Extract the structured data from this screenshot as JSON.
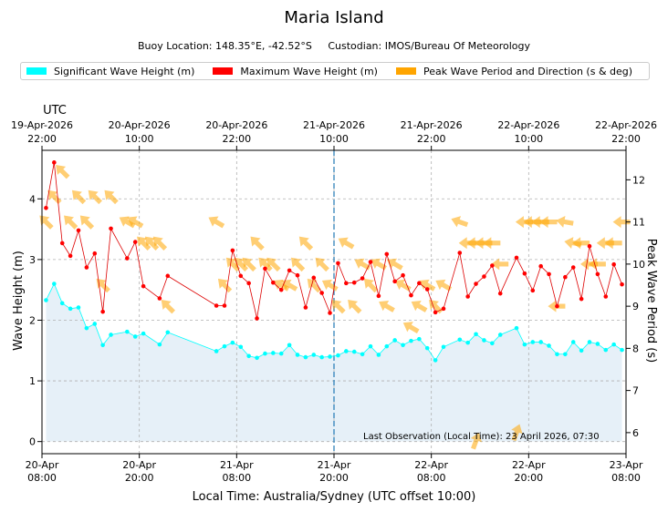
{
  "chart_data": {
    "type": "line",
    "title": "Maria Island",
    "subtitle": "Buoy Location: 148.35°E, -42.52°S     Custodian: IMOS/Bureau Of Meteorology",
    "xlabel": "Local Time: Australia/Sydney (UTC offset 10:00)",
    "ylabel_left": "Wave Height (m)",
    "ylabel_right": "Peak Wave Period (s)",
    "top_axis_label": "UTC",
    "ylim_left": [
      -0.2,
      4.8
    ],
    "ylim_right": [
      5.5,
      12.7
    ],
    "xlim_hours": [
      0,
      72
    ],
    "x_unit": "hours since 20-Apr 08:00 local",
    "yticks_left": [
      0,
      1,
      2,
      3,
      4
    ],
    "yticks_right": [
      6,
      7,
      8,
      9,
      10,
      11,
      12
    ],
    "xticks_bottom": [
      {
        "x": 0,
        "line1": "20-Apr",
        "line2": "08:00"
      },
      {
        "x": 12,
        "line1": "20-Apr",
        "line2": "20:00"
      },
      {
        "x": 24,
        "line1": "21-Apr",
        "line2": "08:00"
      },
      {
        "x": 36,
        "line1": "21-Apr",
        "line2": "20:00"
      },
      {
        "x": 48,
        "line1": "22-Apr",
        "line2": "08:00"
      },
      {
        "x": 60,
        "line1": "22-Apr",
        "line2": "20:00"
      },
      {
        "x": 72,
        "line1": "23-Apr",
        "line2": "08:00"
      }
    ],
    "xticks_top": [
      {
        "x": 0,
        "line1": "19-Apr-2026",
        "line2": "22:00"
      },
      {
        "x": 12,
        "line1": "20-Apr-2026",
        "line2": "10:00"
      },
      {
        "x": 24,
        "line1": "20-Apr-2026",
        "line2": "22:00"
      },
      {
        "x": 36,
        "line1": "21-Apr-2026",
        "line2": "10:00"
      },
      {
        "x": 48,
        "line1": "21-Apr-2026",
        "line2": "22:00"
      },
      {
        "x": 60,
        "line1": "22-Apr-2026",
        "line2": "10:00"
      },
      {
        "x": 72,
        "line1": "22-Apr-2026",
        "line2": "22:00"
      }
    ],
    "marker_line_x": 36,
    "annotation": "Last Observation (Local Time): 23 April 2026, 07:30",
    "legend": [
      {
        "name": "Significant Wave Height (m)",
        "color": "#00ffff"
      },
      {
        "name": "Maximum Wave Height (m)",
        "color": "#ff0000"
      },
      {
        "name": "Peak Wave Period and Direction (s & deg)",
        "color": "#ffa500"
      }
    ],
    "colors": {
      "significant": "#00ffff",
      "maximum": "#ff0000",
      "maximum_line": "#dd0000",
      "period": "#ffa500",
      "fill": "#e6f0f8",
      "marker_line": "#1f77b4"
    },
    "series": [
      {
        "name": "Significant Wave Height (m)",
        "points": [
          [
            0.5,
            2.33
          ],
          [
            1.5,
            2.6
          ],
          [
            2.5,
            2.28
          ],
          [
            3.5,
            2.19
          ],
          [
            4.5,
            2.21
          ],
          [
            5.5,
            1.87
          ],
          [
            6.5,
            1.94
          ],
          [
            7.5,
            1.59
          ],
          [
            8.5,
            1.76
          ],
          [
            10.5,
            1.81
          ],
          [
            11.5,
            1.73
          ],
          [
            12.5,
            1.78
          ],
          [
            14.5,
            1.6
          ],
          [
            15.5,
            1.8
          ],
          [
            21.5,
            1.49
          ],
          [
            22.5,
            1.57
          ],
          [
            23.5,
            1.63
          ],
          [
            24.5,
            1.56
          ],
          [
            25.5,
            1.41
          ],
          [
            26.5,
            1.38
          ],
          [
            27.5,
            1.45
          ],
          [
            28.5,
            1.46
          ],
          [
            29.5,
            1.45
          ],
          [
            30.5,
            1.59
          ],
          [
            31.5,
            1.43
          ],
          [
            32.5,
            1.39
          ],
          [
            33.5,
            1.43
          ],
          [
            34.5,
            1.39
          ],
          [
            35.5,
            1.4
          ],
          [
            36.5,
            1.42
          ],
          [
            37.5,
            1.49
          ],
          [
            38.5,
            1.48
          ],
          [
            39.5,
            1.44
          ],
          [
            40.5,
            1.57
          ],
          [
            41.5,
            1.43
          ],
          [
            42.5,
            1.57
          ],
          [
            43.5,
            1.67
          ],
          [
            44.5,
            1.59
          ],
          [
            45.5,
            1.66
          ],
          [
            46.5,
            1.69
          ],
          [
            47.5,
            1.54
          ],
          [
            48.5,
            1.34
          ],
          [
            49.5,
            1.56
          ],
          [
            51.5,
            1.68
          ],
          [
            52.5,
            1.63
          ],
          [
            53.5,
            1.77
          ],
          [
            54.5,
            1.67
          ],
          [
            55.5,
            1.62
          ],
          [
            56.5,
            1.76
          ],
          [
            58.5,
            1.87
          ],
          [
            59.5,
            1.6
          ],
          [
            60.5,
            1.64
          ],
          [
            61.5,
            1.64
          ],
          [
            62.5,
            1.58
          ],
          [
            63.5,
            1.44
          ],
          [
            64.5,
            1.44
          ],
          [
            65.5,
            1.64
          ],
          [
            66.5,
            1.5
          ],
          [
            67.5,
            1.64
          ],
          [
            68.5,
            1.61
          ],
          [
            69.5,
            1.51
          ],
          [
            70.5,
            1.6
          ],
          [
            71.5,
            1.51
          ]
        ]
      },
      {
        "name": "Maximum Wave Height (m)",
        "points": [
          [
            0.5,
            3.85
          ],
          [
            1.5,
            4.6
          ],
          [
            2.5,
            3.27
          ],
          [
            3.5,
            3.06
          ],
          [
            4.5,
            3.48
          ],
          [
            5.5,
            2.87
          ],
          [
            6.5,
            3.1
          ],
          [
            7.5,
            2.14
          ],
          [
            8.5,
            3.51
          ],
          [
            10.5,
            3.02
          ],
          [
            11.5,
            3.29
          ],
          [
            12.5,
            2.56
          ],
          [
            14.5,
            2.36
          ],
          [
            15.5,
            2.73
          ],
          [
            21.5,
            2.24
          ],
          [
            22.5,
            2.24
          ],
          [
            23.5,
            3.15
          ],
          [
            24.5,
            2.73
          ],
          [
            25.5,
            2.61
          ],
          [
            26.5,
            2.03
          ],
          [
            27.5,
            2.85
          ],
          [
            28.5,
            2.62
          ],
          [
            29.5,
            2.5
          ],
          [
            30.5,
            2.82
          ],
          [
            31.5,
            2.74
          ],
          [
            32.5,
            2.21
          ],
          [
            33.5,
            2.7
          ],
          [
            34.5,
            2.45
          ],
          [
            35.5,
            2.12
          ],
          [
            36.5,
            2.94
          ],
          [
            37.5,
            2.61
          ],
          [
            38.5,
            2.62
          ],
          [
            39.5,
            2.69
          ],
          [
            40.5,
            2.96
          ],
          [
            41.5,
            2.4
          ],
          [
            42.5,
            3.09
          ],
          [
            43.5,
            2.64
          ],
          [
            44.5,
            2.74
          ],
          [
            45.5,
            2.41
          ],
          [
            46.5,
            2.61
          ],
          [
            47.5,
            2.51
          ],
          [
            48.5,
            2.13
          ],
          [
            49.5,
            2.19
          ],
          [
            51.5,
            3.11
          ],
          [
            52.5,
            2.39
          ],
          [
            53.5,
            2.6
          ],
          [
            54.5,
            2.72
          ],
          [
            55.5,
            2.9
          ],
          [
            56.5,
            2.44
          ],
          [
            58.5,
            3.03
          ],
          [
            59.5,
            2.77
          ],
          [
            60.5,
            2.49
          ],
          [
            61.5,
            2.89
          ],
          [
            62.5,
            2.76
          ],
          [
            63.5,
            2.23
          ],
          [
            64.5,
            2.71
          ],
          [
            65.5,
            2.87
          ],
          [
            66.5,
            2.35
          ],
          [
            67.5,
            3.22
          ],
          [
            68.5,
            2.76
          ],
          [
            69.5,
            2.39
          ],
          [
            70.5,
            2.92
          ],
          [
            71.5,
            2.59
          ]
        ]
      },
      {
        "name": "Peak Wave Period and Direction (s & deg)",
        "points": [
          [
            0.5,
            11.0,
            315
          ],
          [
            1.5,
            11.6,
            315
          ],
          [
            2.5,
            12.2,
            315
          ],
          [
            3.5,
            11.0,
            315
          ],
          [
            4.5,
            11.6,
            315
          ],
          [
            5.5,
            11.0,
            315
          ],
          [
            6.5,
            11.6,
            315
          ],
          [
            7.5,
            9.5,
            315
          ],
          [
            8.5,
            11.6,
            315
          ],
          [
            10.5,
            11.0,
            300
          ],
          [
            11.5,
            11.0,
            300
          ],
          [
            12.5,
            10.5,
            315
          ],
          [
            13.5,
            10.5,
            315
          ],
          [
            14.5,
            10.5,
            315
          ],
          [
            15.5,
            9.0,
            315
          ],
          [
            21.5,
            11.0,
            300
          ],
          [
            22.5,
            9.5,
            315
          ],
          [
            23.5,
            10.0,
            315
          ],
          [
            24.5,
            10.0,
            315
          ],
          [
            25.5,
            10.0,
            315
          ],
          [
            26.5,
            10.5,
            315
          ],
          [
            27.5,
            10.0,
            315
          ],
          [
            28.5,
            10.0,
            315
          ],
          [
            29.5,
            9.5,
            300
          ],
          [
            30.5,
            9.5,
            300
          ],
          [
            31.5,
            10.0,
            315
          ],
          [
            32.5,
            10.5,
            315
          ],
          [
            33.5,
            9.5,
            315
          ],
          [
            34.5,
            10.0,
            315
          ],
          [
            35.5,
            9.5,
            300
          ],
          [
            36.5,
            9.0,
            315
          ],
          [
            37.5,
            10.5,
            300
          ],
          [
            38.5,
            9.0,
            315
          ],
          [
            39.5,
            10.0,
            300
          ],
          [
            40.5,
            9.5,
            315
          ],
          [
            41.5,
            10.0,
            300
          ],
          [
            42.5,
            9.0,
            300
          ],
          [
            43.5,
            10.0,
            300
          ],
          [
            44.5,
            9.5,
            300
          ],
          [
            45.5,
            8.5,
            300
          ],
          [
            46.5,
            9.0,
            300
          ],
          [
            47.5,
            9.5,
            300
          ],
          [
            48.5,
            9.0,
            315
          ],
          [
            49.5,
            9.5,
            300
          ],
          [
            51.5,
            11.0,
            290
          ],
          [
            52.5,
            10.5,
            270
          ],
          [
            53.5,
            10.5,
            270
          ],
          [
            54.5,
            10.5,
            270
          ],
          [
            55.5,
            10.5,
            270
          ],
          [
            56.5,
            10.0,
            270
          ],
          [
            58.5,
            6.0,
            20
          ],
          [
            59.5,
            11.0,
            270
          ],
          [
            60.5,
            11.0,
            270
          ],
          [
            61.5,
            11.0,
            270
          ],
          [
            62.5,
            11.0,
            270
          ],
          [
            63.5,
            9.0,
            270
          ],
          [
            64.5,
            11.0,
            280
          ],
          [
            65.5,
            10.5,
            280
          ],
          [
            66.5,
            10.5,
            270
          ],
          [
            67.5,
            10.0,
            270
          ],
          [
            68.5,
            10.0,
            270
          ],
          [
            69.5,
            10.5,
            270
          ],
          [
            70.5,
            10.5,
            270
          ],
          [
            71.5,
            11.0,
            270
          ],
          [
            53.5,
            5.8,
            20
          ]
        ]
      }
    ]
  }
}
